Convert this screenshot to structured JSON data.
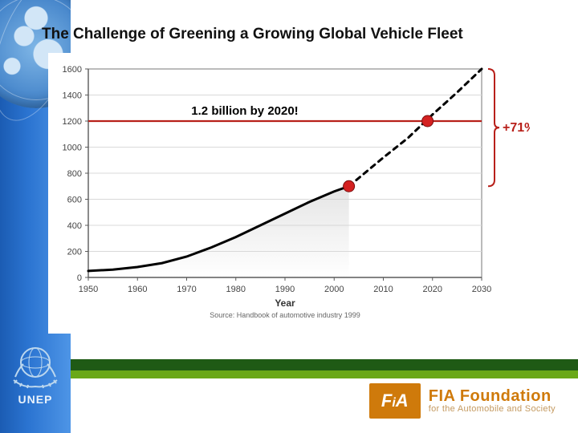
{
  "slide": {
    "title": "The Challenge of Greening a Growing Global Vehicle Fleet"
  },
  "chart": {
    "type": "line",
    "source_text": "Source: Handbook of automotive industry 1999",
    "x_label": "Year",
    "xlim": [
      1950,
      2030
    ],
    "xtick_step": 10,
    "xticks": [
      1950,
      1960,
      1970,
      1980,
      1990,
      2000,
      2010,
      2020,
      2030
    ],
    "ylim": [
      0,
      1600
    ],
    "ytick_step": 200,
    "yticks": [
      0,
      200,
      400,
      600,
      800,
      1000,
      1200,
      1400,
      1600
    ],
    "reference_value": 1200,
    "reference_color": "#b8201a",
    "annotation": "1.2 billion by 2020!",
    "annotation_fontsize": 15,
    "pct_label": "+71%",
    "pct_color": "#b8201a",
    "series_solid": {
      "data": [
        [
          1950,
          50
        ],
        [
          1955,
          60
        ],
        [
          1960,
          80
        ],
        [
          1965,
          110
        ],
        [
          1970,
          160
        ],
        [
          1975,
          230
        ],
        [
          1980,
          310
        ],
        [
          1985,
          400
        ],
        [
          1990,
          490
        ],
        [
          1995,
          580
        ],
        [
          2000,
          660
        ],
        [
          2003,
          700
        ]
      ],
      "color": "#000000",
      "width": 3
    },
    "series_dashed": {
      "data": [
        [
          2003,
          700
        ],
        [
          2010,
          920
        ],
        [
          2015,
          1070
        ],
        [
          2020,
          1250
        ],
        [
          2025,
          1420
        ],
        [
          2030,
          1600
        ]
      ],
      "color": "#000000",
      "width": 3,
      "dash": "6,6"
    },
    "markers": [
      {
        "x": 2003,
        "y": 700,
        "color": "#d42121",
        "r": 7
      },
      {
        "x": 2019,
        "y": 1200,
        "color": "#d42121",
        "r": 7
      }
    ],
    "shade": {
      "from_x": 1950,
      "to_x": 2003,
      "color": "#cfcfcf",
      "opacity": 0.55
    },
    "grid_color": "#d9d9d9",
    "axis_color": "#5a5a5a",
    "background": "#ffffff",
    "plot_border_color": "#777777",
    "tick_fontsize": 11,
    "label_fontsize": 12
  },
  "sidebar": {
    "org_label": "UNEP"
  },
  "footer": {
    "fia_logo_text": "FiA",
    "fia_name": "FIA Foundation",
    "fia_tag": "for the Automobile and Society"
  },
  "colors": {
    "band_dark": "#1f5a15",
    "band_light": "#6aa818",
    "fia_orange": "#cf7a0b"
  }
}
